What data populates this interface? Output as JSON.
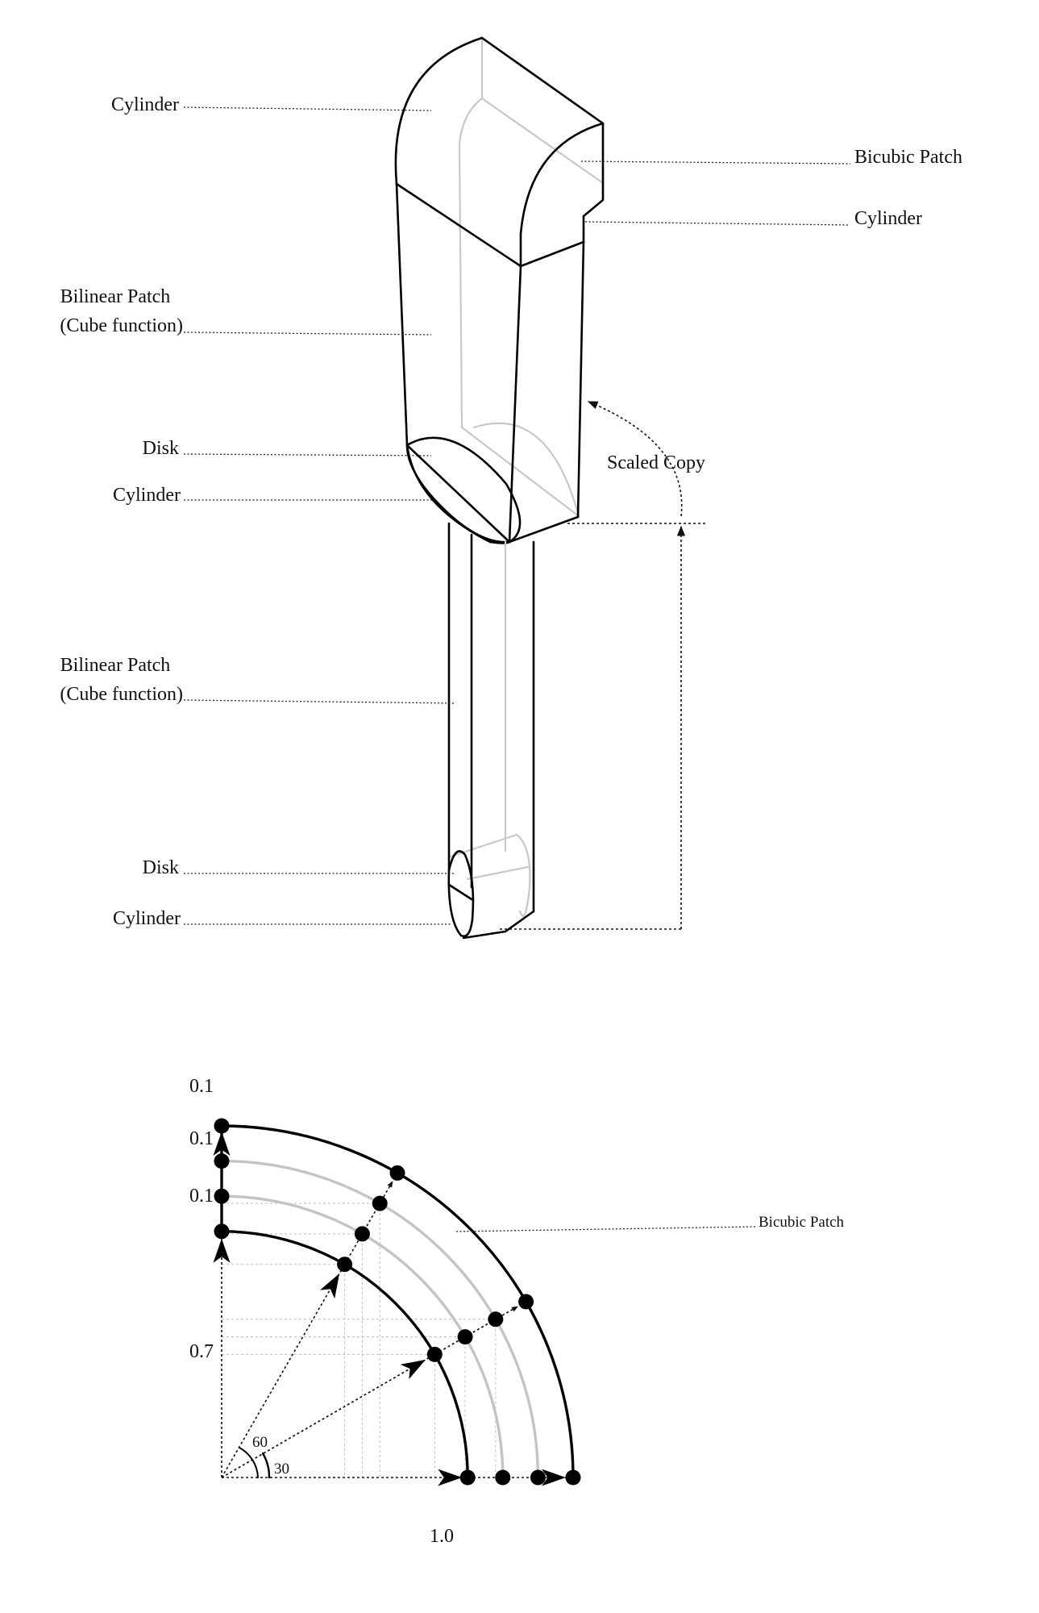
{
  "labels": {
    "cylinder_top": "Cylinder",
    "bicubic_patch_top": "Bicubic Patch",
    "cylinder_right": "Cylinder",
    "bilinear_upper_line1": "Bilinear Patch",
    "bilinear_upper_line2": "(Cube function)",
    "disk_mid": "Disk",
    "cylinder_mid": "Cylinder",
    "scaled_copy": "Scaled Copy",
    "bilinear_lower_line1": "Bilinear Patch",
    "bilinear_lower_line2": "(Cube function)",
    "disk_bottom": "Disk",
    "cylinder_bottom": "Cylinder"
  },
  "quarter_diagram": {
    "bicubic_patch": "Bicubic Patch",
    "inner_radius_label": "0.7",
    "radial_step_labels": [
      "0.1",
      "0.1",
      "0.1"
    ],
    "base_label": "1.0",
    "angle_labels": [
      "60",
      "30"
    ],
    "inner_radius": 0.7,
    "radial_steps": [
      0.1,
      0.1,
      0.1
    ],
    "angles_deg": [
      30,
      60
    ]
  }
}
